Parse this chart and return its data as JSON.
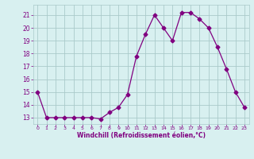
{
  "hours": [
    0,
    1,
    2,
    3,
    4,
    5,
    6,
    7,
    8,
    9,
    10,
    11,
    12,
    13,
    14,
    15,
    16,
    17,
    18,
    19,
    20,
    21,
    22,
    23
  ],
  "values": [
    15,
    13,
    13,
    13,
    13,
    13,
    13,
    12.9,
    13.4,
    13.8,
    14.8,
    17.8,
    19.5,
    21.0,
    20.0,
    19.0,
    21.2,
    21.2,
    20.7,
    20.0,
    18.5,
    16.8,
    15.0,
    13.8
  ],
  "line_color": "#800080",
  "marker": "D",
  "bg_color": "#d8f0f0",
  "grid_color": "#aacaca",
  "xlabel": "Windchill (Refroidissement éolien,°C)",
  "xlabel_color": "#800080",
  "tick_color": "#800080",
  "ylim": [
    12.5,
    21.8
  ],
  "xlim": [
    -0.5,
    23.5
  ],
  "yticks": [
    13,
    14,
    15,
    16,
    17,
    18,
    19,
    20,
    21
  ],
  "xticks": [
    0,
    1,
    2,
    3,
    4,
    5,
    6,
    7,
    8,
    9,
    10,
    11,
    12,
    13,
    14,
    15,
    16,
    17,
    18,
    19,
    20,
    21,
    22,
    23
  ]
}
